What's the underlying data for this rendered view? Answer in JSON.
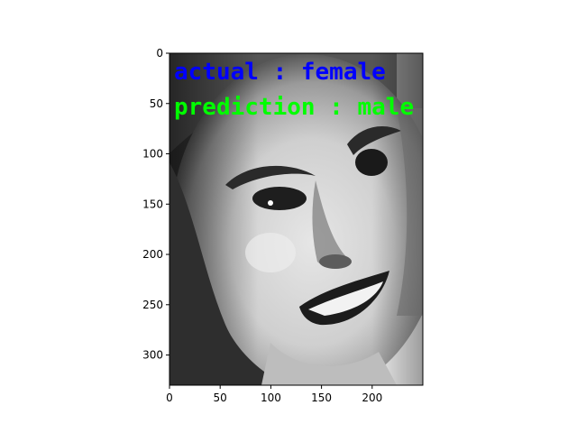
{
  "image": {
    "subject": "grayscale face photo",
    "colormap": "gray",
    "x_range": [
      0,
      250
    ],
    "y_range": [
      330,
      0
    ]
  },
  "axes": {
    "x_ticks": [
      "0",
      "50",
      "100",
      "150",
      "200"
    ],
    "y_ticks": [
      "0",
      "50",
      "100",
      "150",
      "200",
      "250",
      "300"
    ]
  },
  "overlay": {
    "actual_text": "actual : female",
    "actual_color": "#0000ff",
    "prediction_text": "prediction : male",
    "prediction_color": "#00ff00"
  }
}
